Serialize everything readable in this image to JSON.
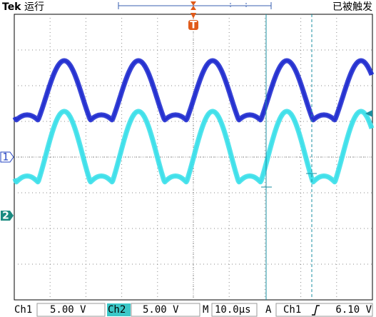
{
  "header": {
    "brand": "Tek",
    "status": "运行",
    "trigger_state": "已被触发",
    "trigger_marker": "T"
  },
  "markers": {
    "ch1": "1",
    "ch2": "2"
  },
  "status_bar": {
    "ch1_label": "Ch1",
    "ch1_scale": "5.00 V",
    "ch2_label": "Ch2",
    "ch2_scale": "5.00 V",
    "time_label": "M",
    "time_scale": "10.0µs",
    "trigger_label": "A",
    "trigger_source": "Ch1",
    "trigger_level": "6.10 V"
  }
}
